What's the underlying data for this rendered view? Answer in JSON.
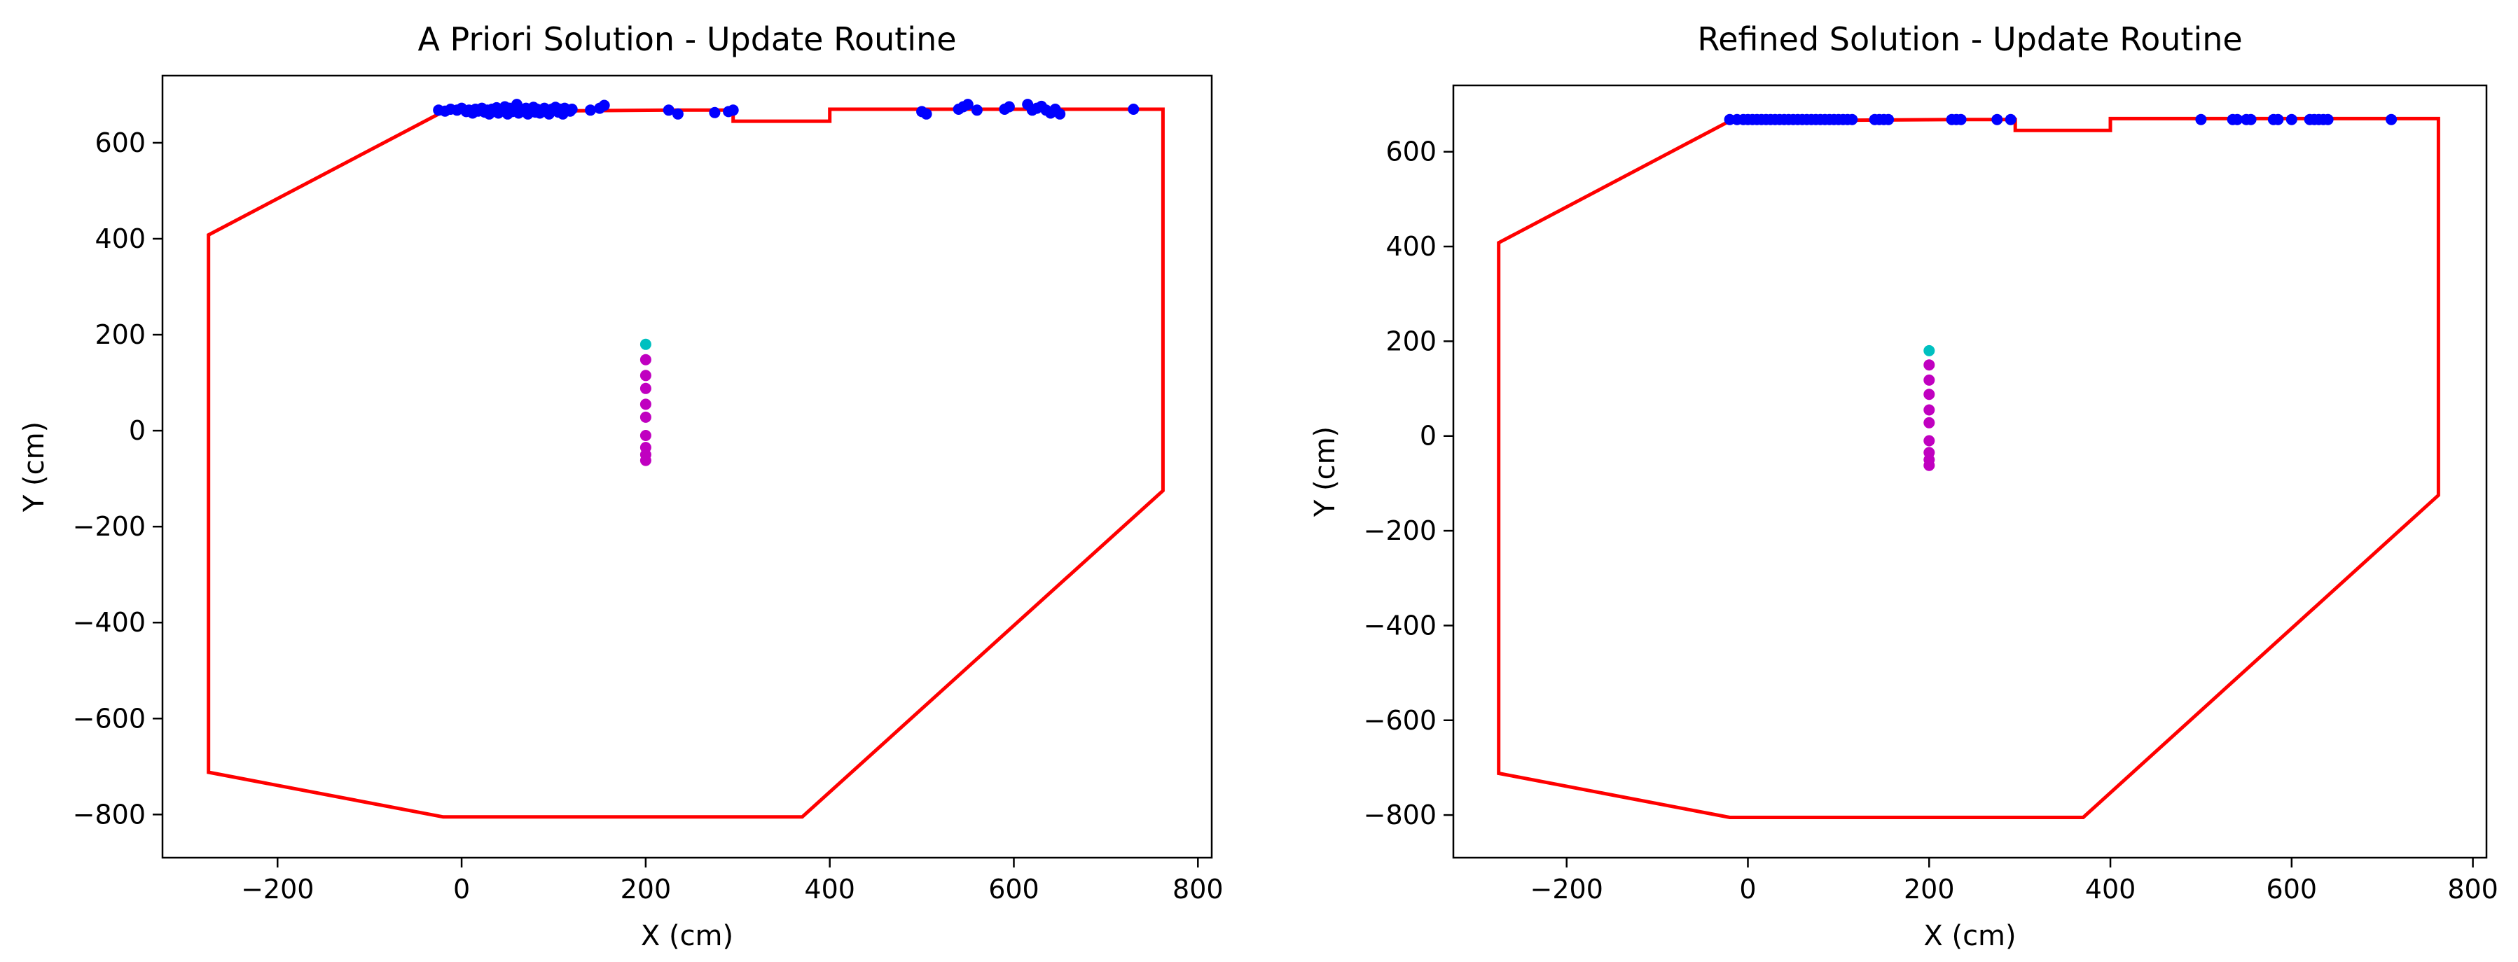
{
  "chart_data": [
    {
      "type": "scatter",
      "title": "A Priori Solution - Update Routine",
      "xlabel": "X (cm)",
      "ylabel": "Y (cm)",
      "xlim": [
        -325,
        815
      ],
      "ylim": [
        -890,
        740
      ],
      "xticks": [
        -200,
        0,
        200,
        400,
        600,
        800
      ],
      "yticks": [
        -800,
        -600,
        -400,
        -200,
        0,
        200,
        400,
        600
      ],
      "grid": false,
      "boundary": {
        "color": "#ff0000",
        "x": [
          -20,
          -275,
          -275,
          -20,
          370,
          762,
          762,
          400,
          400,
          295,
          295,
          230,
          -20
        ],
        "y": [
          665,
          408,
          -712,
          -805,
          -805,
          -125,
          670,
          670,
          645,
          645,
          668,
          668,
          665
        ]
      },
      "series": [
        {
          "color": "#0000ff",
          "x": [
            -25,
            -18,
            -12,
            -5,
            0,
            5,
            8,
            12,
            15,
            18,
            22,
            25,
            28,
            30,
            33,
            35,
            38,
            40,
            42,
            45,
            47,
            50,
            52,
            55,
            57,
            60,
            62,
            65,
            68,
            70,
            72,
            75,
            78,
            80,
            82,
            85,
            88,
            90,
            92,
            95,
            98,
            100,
            102,
            105,
            108,
            110,
            112,
            115,
            118,
            120,
            140,
            150,
            155,
            225,
            235,
            275,
            290,
            295,
            500,
            505,
            540,
            545,
            550,
            560,
            590,
            595,
            615,
            620,
            625,
            630,
            635,
            640,
            645,
            650,
            730
          ],
          "y": [
            668,
            666,
            670,
            668,
            672,
            665,
            668,
            662,
            670,
            666,
            672,
            664,
            668,
            660,
            670,
            666,
            673,
            662,
            670,
            668,
            675,
            660,
            672,
            665,
            668,
            680,
            662,
            670,
            666,
            672,
            660,
            668,
            674,
            664,
            670,
            662,
            668,
            672,
            666,
            660,
            670,
            668,
            674,
            664,
            670,
            660,
            672,
            668,
            666,
            670,
            668,
            672,
            678,
            668,
            660,
            663,
            665,
            668,
            665,
            660,
            670,
            675,
            680,
            668,
            670,
            675,
            680,
            668,
            672,
            676,
            668,
            662,
            670,
            660,
            670
          ]
        },
        {
          "color": "#c000c0",
          "x": [
            200,
            200,
            200,
            200,
            200,
            200,
            200,
            200,
            200
          ],
          "y": [
            148,
            115,
            88,
            55,
            28,
            -10,
            -35,
            -50,
            -62
          ]
        },
        {
          "color": "#00c0c0",
          "x": [
            200
          ],
          "y": [
            180
          ]
        }
      ]
    },
    {
      "type": "scatter",
      "title": "Refined Solution - Update Routine",
      "xlabel": "X (cm)",
      "ylabel": "Y (cm)",
      "xlim": [
        -325,
        815
      ],
      "ylim": [
        -890,
        740
      ],
      "xticks": [
        -200,
        0,
        200,
        400,
        600,
        800
      ],
      "yticks": [
        -800,
        -600,
        -400,
        -200,
        0,
        200,
        400,
        600
      ],
      "grid": false,
      "boundary": {
        "color": "#ff0000",
        "x": [
          -20,
          -275,
          -275,
          -20,
          370,
          762,
          762,
          400,
          400,
          295,
          295,
          230,
          -20
        ],
        "y": [
          665,
          408,
          -712,
          -805,
          -805,
          -125,
          670,
          670,
          645,
          645,
          668,
          668,
          665
        ]
      },
      "series": [
        {
          "color": "#0000ff",
          "x": [
            -20,
            -12,
            -5,
            0,
            5,
            10,
            15,
            20,
            25,
            30,
            35,
            40,
            45,
            50,
            55,
            60,
            65,
            70,
            75,
            80,
            85,
            90,
            95,
            100,
            105,
            110,
            115,
            140,
            145,
            150,
            155,
            225,
            230,
            235,
            275,
            290,
            500,
            535,
            540,
            550,
            555,
            580,
            585,
            600,
            620,
            625,
            630,
            635,
            640,
            710
          ],
          "y": [
            668,
            668,
            668,
            668,
            668,
            668,
            668,
            668,
            668,
            668,
            668,
            668,
            668,
            668,
            668,
            668,
            668,
            668,
            668,
            668,
            668,
            668,
            668,
            668,
            668,
            668,
            668,
            668,
            668,
            668,
            668,
            668,
            668,
            668,
            668,
            668,
            668,
            668,
            668,
            668,
            668,
            668,
            668,
            668,
            668,
            668,
            668,
            668,
            668,
            668
          ]
        },
        {
          "color": "#c000c0",
          "x": [
            200,
            200,
            200,
            200,
            200,
            200,
            200,
            200,
            200
          ],
          "y": [
            150,
            118,
            88,
            55,
            28,
            -10,
            -35,
            -50,
            -62
          ]
        },
        {
          "color": "#00c0c0",
          "x": [
            200
          ],
          "y": [
            180
          ]
        }
      ]
    }
  ]
}
